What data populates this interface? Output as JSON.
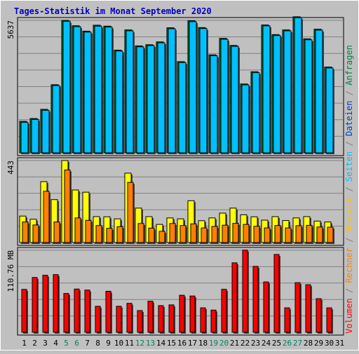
{
  "chart_data": [
    {
      "type": "bar",
      "title": "Tages-Statistik im Monat September 2020",
      "categories": [
        "1",
        "2",
        "3",
        "4",
        "5",
        "6",
        "7",
        "8",
        "9",
        "10",
        "11",
        "12",
        "13",
        "14",
        "15",
        "16",
        "17",
        "18",
        "19",
        "20",
        "21",
        "22",
        "23",
        "24",
        "25",
        "26",
        "27",
        "28",
        "29",
        "30",
        "31"
      ],
      "weekend_days": [
        "5",
        "6",
        "12",
        "13",
        "19",
        "20",
        "26",
        "27"
      ],
      "y_tick_label": "5637",
      "ylim": [
        0,
        5637
      ],
      "series": [
        {
          "name": "Anfragen",
          "color": "#008040",
          "values": [
            1340,
            1460,
            1850,
            2900,
            5637,
            5407,
            5177,
            5430,
            5390,
            4370,
            5230,
            4550,
            4600,
            4720,
            5320,
            3880,
            5620,
            5330,
            4170,
            4870,
            4570,
            2930,
            3450,
            5440,
            5030,
            5230,
            5790,
            4850,
            5260,
            3650,
            null
          ]
        },
        {
          "name": "Dateien",
          "color": "#00c0ff",
          "values": [
            1300,
            1420,
            1810,
            2860,
            5597,
            5367,
            5137,
            5390,
            5350,
            4330,
            5190,
            4510,
            4560,
            4680,
            5280,
            3840,
            5580,
            5290,
            4130,
            4830,
            4530,
            2890,
            3410,
            5400,
            4990,
            5190,
            5750,
            4810,
            5220,
            3610,
            null
          ]
        }
      ]
    },
    {
      "type": "bar",
      "categories": [
        "1",
        "2",
        "3",
        "4",
        "5",
        "6",
        "7",
        "8",
        "9",
        "10",
        "11",
        "12",
        "13",
        "14",
        "15",
        "16",
        "17",
        "18",
        "19",
        "20",
        "21",
        "22",
        "23",
        "24",
        "25",
        "26",
        "27",
        "28",
        "29",
        "30",
        "31"
      ],
      "y_tick_label": "443",
      "ylim": [
        0,
        443
      ],
      "series": [
        {
          "name": "Seiten",
          "color": "#00c0ff",
          "values": [
            0,
            0,
            0,
            0,
            0,
            0,
            0,
            0,
            0,
            0,
            0,
            0,
            0,
            0,
            0,
            0,
            0,
            0,
            0,
            0,
            0,
            0,
            0,
            0,
            0,
            0,
            0,
            0,
            0,
            0,
            null
          ]
        },
        {
          "name": "Besuche",
          "color": "#ffff00",
          "values": [
            143,
            126,
            329,
            232,
            443,
            284,
            272,
            140,
            139,
            128,
            375,
            186,
            140,
            98,
            133,
            128,
            226,
            118,
            133,
            159,
            186,
            150,
            139,
            121,
            140,
            119,
            133,
            140,
            116,
            111,
            null
          ]
        },
        {
          "name": "Rechner",
          "color": "#ff8000",
          "values": [
            111,
            95,
            277,
            111,
            392,
            133,
            120,
            92,
            77,
            86,
            325,
            103,
            78,
            61,
            103,
            92,
            101,
            79,
            87,
            94,
            104,
            98,
            88,
            79,
            92,
            79,
            91,
            93,
            84,
            83,
            null
          ]
        }
      ]
    },
    {
      "type": "bar",
      "categories": [
        "1",
        "2",
        "3",
        "4",
        "5",
        "6",
        "7",
        "8",
        "9",
        "10",
        "11",
        "12",
        "13",
        "14",
        "15",
        "16",
        "17",
        "18",
        "19",
        "20",
        "21",
        "22",
        "23",
        "24",
        "25",
        "26",
        "27",
        "28",
        "29",
        "30",
        "31"
      ],
      "y_tick_label": "110.76 MB",
      "ylim": [
        0,
        110.76
      ],
      "series": [
        {
          "name": "Volumen",
          "color": "#ff0000",
          "values": [
            57.9,
            74.0,
            77.0,
            77.9,
            52.4,
            58.4,
            57.0,
            35.1,
            55.4,
            35.1,
            39.1,
            29.3,
            42.0,
            36.0,
            37.0,
            50.0,
            49.0,
            33.0,
            30.0,
            58.0,
            93.8,
            111.0,
            89.0,
            68.0,
            105.1,
            33.0,
            67.0,
            64.2,
            45.4,
            33.0,
            null
          ]
        }
      ]
    }
  ],
  "legend": [
    {
      "label": "Volumen",
      "color": "#ff0000"
    },
    {
      "sep": " / ",
      "color": "#808080"
    },
    {
      "label": "Rechner",
      "color": "#ff8000"
    },
    {
      "sep": " / ",
      "color": "#808080"
    },
    {
      "label": "Besuche",
      "color": "#ffc000"
    },
    {
      "sep": " / ",
      "color": "#808080"
    },
    {
      "label": "Seiten",
      "color": "#00c0ff"
    },
    {
      "sep": " / ",
      "color": "#808080"
    },
    {
      "label": "Dateien",
      "color": "#0040c0"
    },
    {
      "sep": " / ",
      "color": "#808080"
    },
    {
      "label": "Anfragen",
      "color": "#008040"
    }
  ],
  "colors": {
    "background": "#c0c0c0",
    "title": "#0000c0",
    "weekday_label": "#000000",
    "weekend_label": "#008060",
    "grid": "#808080"
  }
}
